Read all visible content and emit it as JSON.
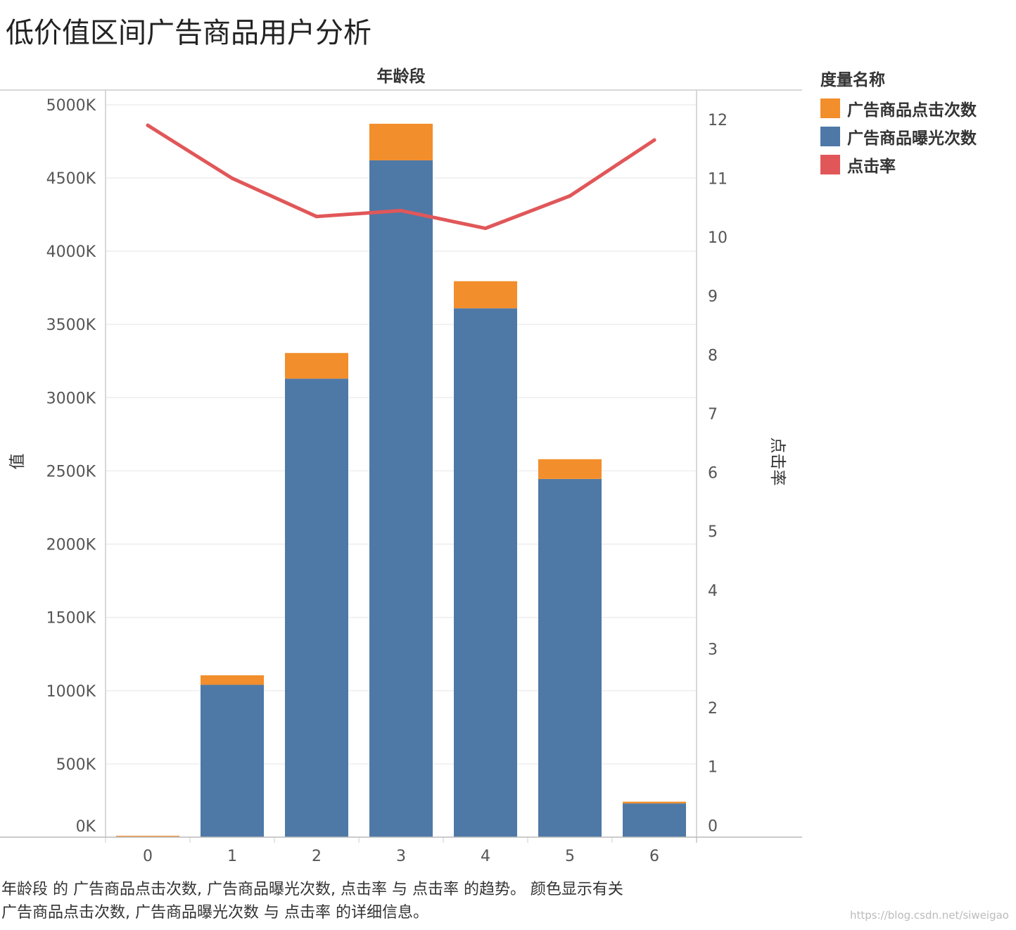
{
  "title": "低价值区间广告商品用户分析",
  "colors": {
    "clicks": "#f28e2b",
    "impressions": "#4e79a7",
    "ctr": "#e15759",
    "gridline": "#eeeeee",
    "axis": "#bbbbbb"
  },
  "legend": {
    "title": "度量名称",
    "items": [
      {
        "label": "广告商品点击次数",
        "color": "#f28e2b"
      },
      {
        "label": "广告商品曝光次数",
        "color": "#4e79a7"
      },
      {
        "label": "点击率",
        "color": "#e15759"
      }
    ]
  },
  "chart_data": {
    "type": "bar",
    "stacked": true,
    "title": "低价值区间广告商品用户分析",
    "header_label": "年龄段",
    "xlabel": "",
    "ylabel": "值",
    "y2label": "点击率",
    "categories": [
      "0",
      "1",
      "2",
      "3",
      "4",
      "5",
      "6"
    ],
    "ylim": [
      0,
      5100
    ],
    "y_ticks": [
      0,
      500,
      1000,
      1500,
      2000,
      2500,
      3000,
      3500,
      4000,
      4500,
      5000
    ],
    "y_tick_labels": [
      "0K",
      "500K",
      "1000K",
      "1500K",
      "2000K",
      "2500K",
      "3000K",
      "3500K",
      "4000K",
      "4500K",
      "5000K"
    ],
    "y2lim": [
      -0.2,
      12.5
    ],
    "y2_ticks": [
      0,
      1,
      2,
      3,
      4,
      5,
      6,
      7,
      8,
      9,
      10,
      11,
      12
    ],
    "y2_tick_labels": [
      "0",
      "1",
      "2",
      "3",
      "4",
      "5",
      "6",
      "7",
      "8",
      "9",
      "10",
      "11",
      "12"
    ],
    "grid": true,
    "legend_position": "right",
    "series": [
      {
        "name": "广告商品曝光次数",
        "kind": "bar",
        "color": "#4e79a7",
        "values": [
          8,
          1040,
          3130,
          4620,
          3610,
          2445,
          230
        ]
      },
      {
        "name": "广告商品点击次数",
        "kind": "bar",
        "color": "#f28e2b",
        "values": [
          1,
          65,
          175,
          250,
          185,
          135,
          12
        ]
      },
      {
        "name": "点击率",
        "kind": "line",
        "axis": "right",
        "color": "#e15759",
        "values": [
          11.9,
          11.0,
          10.35,
          10.45,
          10.15,
          10.7,
          11.65
        ]
      }
    ]
  },
  "caption": {
    "line1": "年龄段 的 广告商品点击次数, 广告商品曝光次数, 点击率 与 点击率 的趋势。 颜色显示有关",
    "line2": "广告商品点击次数, 广告商品曝光次数 与 点击率 的详细信息。"
  },
  "watermark": "https://blog.csdn.net/siweigao"
}
